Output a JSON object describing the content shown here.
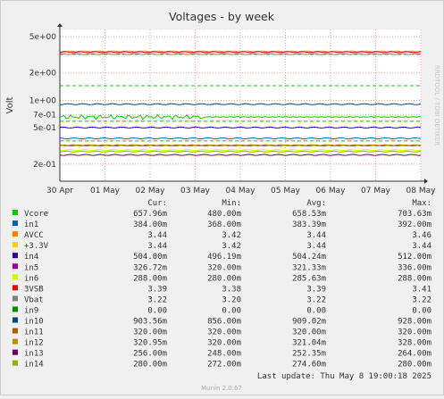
{
  "chart_data": {
    "type": "line",
    "title": "Voltages - by week",
    "ylabel": "Volt",
    "yscale": "log",
    "ylim": [
      0.13,
      6.0
    ],
    "y_ticks": [
      {
        "value": 5.0,
        "label": "5e+00"
      },
      {
        "value": 2.0,
        "label": "2e+00"
      },
      {
        "value": 1.0,
        "label": "1e+00"
      },
      {
        "value": 0.7,
        "label": "7e-01"
      },
      {
        "value": 0.5,
        "label": "5e-01"
      },
      {
        "value": 0.2,
        "label": "2e-01"
      }
    ],
    "x_ticks": [
      "30 Apr",
      "01 May",
      "02 May",
      "03 May",
      "04 May",
      "05 May",
      "06 May",
      "07 May",
      "08 May"
    ],
    "watermark": "RRDTOOL / TOBI OETIKER",
    "footer": "Munin 2.0.67",
    "last_update": "Last update: Thu May  8 19:00:18 2025",
    "columns": [
      "Cur:",
      "Min:",
      "Avg:",
      "Max:"
    ],
    "series": [
      {
        "name": "Vcore",
        "color": "#00cc00",
        "cur": "657.96m",
        "min": "480.00m",
        "avg": "658.53m",
        "max": "703.63m",
        "value": 0.6585,
        "noisy": true
      },
      {
        "name": "in1",
        "color": "#0066b3",
        "cur": "384.00m",
        "min": "368.00m",
        "avg": "383.39m",
        "max": "392.00m",
        "value": 0.3834
      },
      {
        "name": "AVCC",
        "color": "#ff8000",
        "cur": "3.44",
        "min": "3.42",
        "avg": "3.44",
        "max": "3.46",
        "value": 3.44
      },
      {
        "name": "+3.3V",
        "color": "#ffcc00",
        "cur": "3.44",
        "min": "3.42",
        "avg": "3.44",
        "max": "3.44",
        "value": 3.44
      },
      {
        "name": "in4",
        "color": "#330099",
        "cur": "504.00m",
        "min": "496.19m",
        "avg": "504.24m",
        "max": "512.00m",
        "value": 0.5042
      },
      {
        "name": "in5",
        "color": "#990099",
        "cur": "326.72m",
        "min": "320.00m",
        "avg": "321.33m",
        "max": "336.00m",
        "value": 0.3213
      },
      {
        "name": "in6",
        "color": "#ccff00",
        "cur": "288.00m",
        "min": "280.00m",
        "avg": "285.63m",
        "max": "288.00m",
        "value": 0.2856
      },
      {
        "name": "3VSB",
        "color": "#ff0000",
        "cur": "3.39",
        "min": "3.38",
        "avg": "3.39",
        "max": "3.41",
        "value": 3.39
      },
      {
        "name": "Vbat",
        "color": "#808080",
        "cur": "3.22",
        "min": "3.20",
        "avg": "3.22",
        "max": "3.22",
        "value": 3.22
      },
      {
        "name": "in9",
        "color": "#008f00",
        "cur": "0.00",
        "min": "0.00",
        "avg": "0.00",
        "max": "0.00",
        "value": 0
      },
      {
        "name": "in10",
        "color": "#00487d",
        "cur": "903.56m",
        "min": "856.00m",
        "avg": "909.02m",
        "max": "928.00m",
        "value": 0.909
      },
      {
        "name": "in11",
        "color": "#b35a00",
        "cur": "320.00m",
        "min": "320.00m",
        "avg": "320.00m",
        "max": "320.00m",
        "value": 0.32
      },
      {
        "name": "in12",
        "color": "#b38f00",
        "cur": "320.95m",
        "min": "320.00m",
        "avg": "321.04m",
        "max": "328.00m",
        "value": 0.321
      },
      {
        "name": "in13",
        "color": "#6b006b",
        "cur": "256.00m",
        "min": "248.00m",
        "avg": "252.35m",
        "max": "264.00m",
        "value": 0.2524
      },
      {
        "name": "in14",
        "color": "#8fb300",
        "cur": "280.00m",
        "min": "272.00m",
        "avg": "274.60m",
        "max": "280.00m",
        "value": 0.2746
      }
    ],
    "thresholds": [
      {
        "value": 3.19,
        "color": "#808080",
        "style": "dashed"
      },
      {
        "value": 1.45,
        "color": "#00cc00",
        "style": "dashed"
      },
      {
        "value": 0.59,
        "color": "#00cc00",
        "style": "dashed"
      },
      {
        "value": 0.36,
        "color": "#00cc00",
        "style": "dashed"
      }
    ]
  }
}
